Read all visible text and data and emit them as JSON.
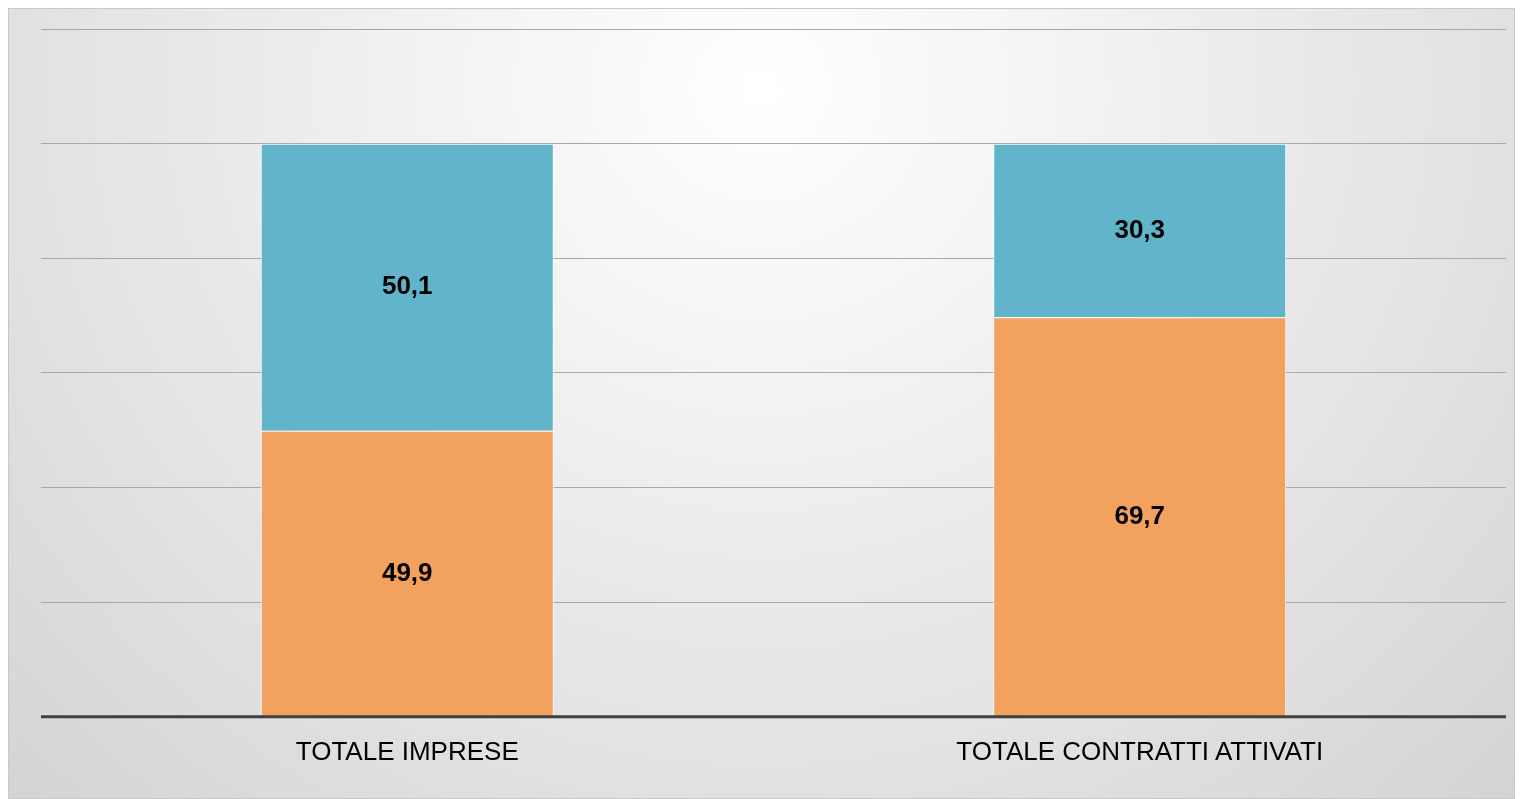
{
  "chart_data": {
    "type": "bar",
    "stacked": true,
    "categories": [
      "TOTALE IMPRESE",
      "TOTALE CONTRATTI ATTIVATI"
    ],
    "series": [
      {
        "color": "#f2a25e",
        "values": [
          49.9,
          69.7
        ],
        "value_labels": [
          "49,9",
          "69,7"
        ]
      },
      {
        "color": "#62b4cb",
        "values": [
          50.1,
          30.3
        ],
        "value_labels": [
          "50,1",
          "30,3"
        ]
      }
    ],
    "grid": "y",
    "tick_labels": "x",
    "legend": false
  }
}
